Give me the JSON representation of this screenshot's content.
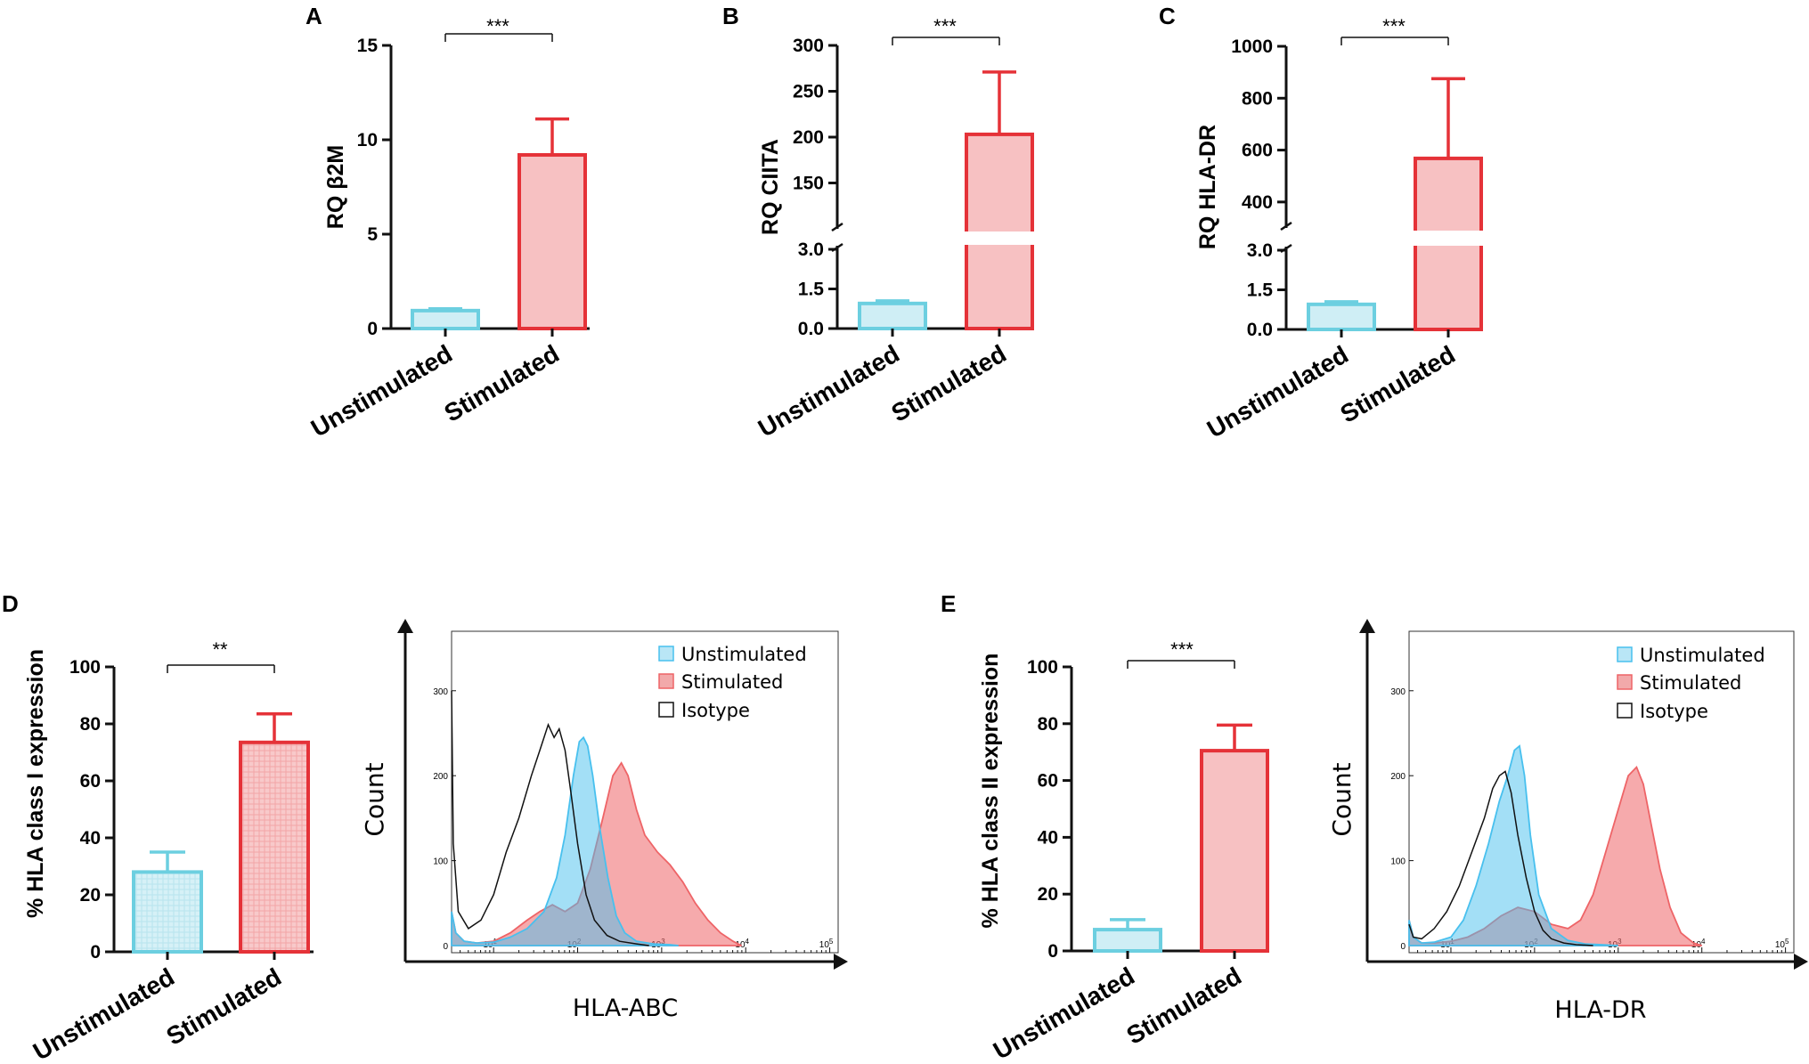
{
  "colors": {
    "unstim_stroke": "#6ccfe0",
    "unstim_fill": "#cfeef5",
    "stim_stroke": "#e53238",
    "stim_fill": "#f7c1c2",
    "flow_blue": "#48c0ee",
    "flow_red": "#ee6467",
    "isotype": "#111111",
    "axis": "#111111"
  },
  "chart_data": [
    {
      "id": "A",
      "type": "bar",
      "panel_label": "A",
      "ylabel": "RQ β2M",
      "categories": [
        "Unstimulated",
        "Stimulated"
      ],
      "values": [
        0.95,
        9.2
      ],
      "errors": [
        0.1,
        1.9
      ],
      "ylim": [
        0,
        15
      ],
      "yticks": [
        "0",
        "5",
        "10",
        "15"
      ],
      "significance": "***"
    },
    {
      "id": "B",
      "type": "bar",
      "panel_label": "B",
      "ylabel": "RQ CIITA",
      "categories": [
        "Unstimulated",
        "Stimulated"
      ],
      "values": [
        0.95,
        203
      ],
      "errors": [
        0.1,
        68
      ],
      "broken_axis": {
        "lower": [
          0,
          3.0
        ],
        "upper": [
          100,
          300
        ]
      },
      "yticks_lower": [
        "0.0",
        "1.5",
        "3.0"
      ],
      "yticks_upper": [
        "150",
        "200",
        "250",
        "300"
      ],
      "significance": "***"
    },
    {
      "id": "C",
      "type": "bar",
      "panel_label": "C",
      "ylabel": "RQ HLA-DR",
      "categories": [
        "Unstimulated",
        "Stimulated"
      ],
      "values": [
        0.95,
        568
      ],
      "errors": [
        0.1,
        307
      ],
      "broken_axis": {
        "lower": [
          0,
          3.0
        ],
        "upper": [
          300,
          1000
        ]
      },
      "yticks_lower": [
        "0.0",
        "1.5",
        "3.0"
      ],
      "yticks_upper": [
        "400",
        "600",
        "800",
        "1000"
      ],
      "significance": "***"
    },
    {
      "id": "D",
      "type": "bar",
      "panel_label": "D",
      "ylabel": "% HLA class I expression",
      "categories": [
        "Unstimulated",
        "Stimulated"
      ],
      "values": [
        28,
        73.5
      ],
      "errors": [
        7,
        10
      ],
      "ylim": [
        0,
        100
      ],
      "yticks": [
        "0",
        "20",
        "40",
        "60",
        "80",
        "100"
      ],
      "significance": "**"
    },
    {
      "id": "D-flow",
      "type": "area",
      "ylabel": "Count",
      "xlabel": "HLA-ABC",
      "yticks": [
        "0",
        "100",
        "200",
        "300"
      ],
      "ylim": [
        0,
        370
      ],
      "xlim_log10": [
        0.5,
        5.1
      ],
      "xticks": [
        {
          "base": "10",
          "exp": "1"
        },
        {
          "base": "10",
          "exp": "2"
        },
        {
          "base": "10",
          "exp": "3"
        },
        {
          "base": "10",
          "exp": "4"
        },
        {
          "base": "10",
          "exp": "5"
        }
      ],
      "legend": [
        "Unstimulated",
        "Stimulated",
        "Isotype"
      ],
      "series": [
        {
          "name": "Unstimulated",
          "x_log10": [
            0.5,
            0.55,
            0.65,
            0.8,
            1.0,
            1.2,
            1.4,
            1.6,
            1.75,
            1.85,
            1.95,
            2.02,
            2.07,
            2.12,
            2.18,
            2.26,
            2.36,
            2.46,
            2.56,
            2.7,
            2.9,
            3.1,
            3.2
          ],
          "y": [
            40,
            15,
            5,
            3,
            4,
            10,
            20,
            40,
            80,
            130,
            200,
            240,
            245,
            235,
            200,
            140,
            80,
            35,
            15,
            5,
            2,
            1,
            0
          ]
        },
        {
          "name": "Stimulated",
          "x_log10": [
            0.5,
            0.55,
            0.65,
            0.8,
            1.0,
            1.2,
            1.4,
            1.55,
            1.7,
            1.85,
            2.0,
            2.15,
            2.3,
            2.42,
            2.52,
            2.6,
            2.7,
            2.8,
            2.95,
            3.1,
            3.25,
            3.4,
            3.55,
            3.7,
            3.85,
            3.95
          ],
          "y": [
            40,
            15,
            5,
            3,
            5,
            15,
            30,
            40,
            48,
            40,
            50,
            90,
            150,
            200,
            215,
            200,
            160,
            130,
            110,
            95,
            75,
            50,
            30,
            15,
            5,
            0
          ]
        },
        {
          "name": "Isotype",
          "x_log10": [
            0.5,
            0.52,
            0.58,
            0.7,
            0.85,
            1.0,
            1.15,
            1.3,
            1.45,
            1.55,
            1.65,
            1.72,
            1.78,
            1.85,
            1.92,
            2.0,
            2.1,
            2.2,
            2.35,
            2.5,
            2.7,
            2.85
          ],
          "y": [
            300,
            120,
            40,
            20,
            30,
            60,
            110,
            150,
            200,
            230,
            260,
            245,
            255,
            230,
            180,
            120,
            60,
            30,
            12,
            5,
            2,
            0
          ]
        }
      ]
    },
    {
      "id": "E",
      "type": "bar",
      "panel_label": "E",
      "ylabel": "% HLA class II expression",
      "categories": [
        "Unstimulated",
        "Stimulated"
      ],
      "values": [
        7.5,
        70.5
      ],
      "errors": [
        3.5,
        9
      ],
      "ylim": [
        0,
        100
      ],
      "yticks": [
        "0",
        "20",
        "40",
        "60",
        "80",
        "100"
      ],
      "significance": "***"
    },
    {
      "id": "E-flow",
      "type": "area",
      "ylabel": "Count",
      "xlabel": "HLA-DR",
      "yticks": [
        "0",
        "100",
        "200",
        "300"
      ],
      "ylim": [
        0,
        370
      ],
      "xlim_log10": [
        0.5,
        5.1
      ],
      "xticks": [
        {
          "base": "10",
          "exp": "1"
        },
        {
          "base": "10",
          "exp": "2"
        },
        {
          "base": "10",
          "exp": "3"
        },
        {
          "base": "10",
          "exp": "4"
        },
        {
          "base": "10",
          "exp": "5"
        }
      ],
      "legend": [
        "Unstimulated",
        "Stimulated",
        "Isotype"
      ],
      "series": [
        {
          "name": "Unstimulated",
          "x_log10": [
            0.5,
            0.55,
            0.65,
            0.8,
            1.0,
            1.15,
            1.3,
            1.45,
            1.58,
            1.68,
            1.76,
            1.82,
            1.88,
            1.95,
            2.05,
            2.2,
            2.4,
            2.6,
            2.8,
            3.0
          ],
          "y": [
            30,
            10,
            3,
            4,
            10,
            30,
            70,
            120,
            170,
            200,
            230,
            235,
            200,
            130,
            60,
            20,
            6,
            2,
            1,
            0
          ]
        },
        {
          "name": "Stimulated",
          "x_log10": [
            0.5,
            0.55,
            0.65,
            0.8,
            1.0,
            1.2,
            1.4,
            1.6,
            1.8,
            2.0,
            2.2,
            2.4,
            2.55,
            2.7,
            2.85,
            3.0,
            3.12,
            3.22,
            3.3,
            3.4,
            3.5,
            3.62,
            3.75,
            3.9,
            4.0
          ],
          "y": [
            30,
            10,
            3,
            3,
            5,
            10,
            20,
            35,
            45,
            40,
            25,
            20,
            30,
            60,
            110,
            160,
            200,
            210,
            190,
            140,
            90,
            45,
            15,
            3,
            0
          ]
        },
        {
          "name": "Isotype",
          "x_log10": [
            0.5,
            0.55,
            0.65,
            0.8,
            0.95,
            1.1,
            1.25,
            1.4,
            1.5,
            1.58,
            1.65,
            1.72,
            1.8,
            1.9,
            2.0,
            2.1,
            2.2,
            2.35,
            2.5,
            2.7
          ],
          "y": [
            25,
            10,
            8,
            20,
            40,
            70,
            110,
            150,
            185,
            200,
            205,
            180,
            130,
            80,
            40,
            18,
            8,
            3,
            1,
            0
          ]
        }
      ]
    }
  ]
}
